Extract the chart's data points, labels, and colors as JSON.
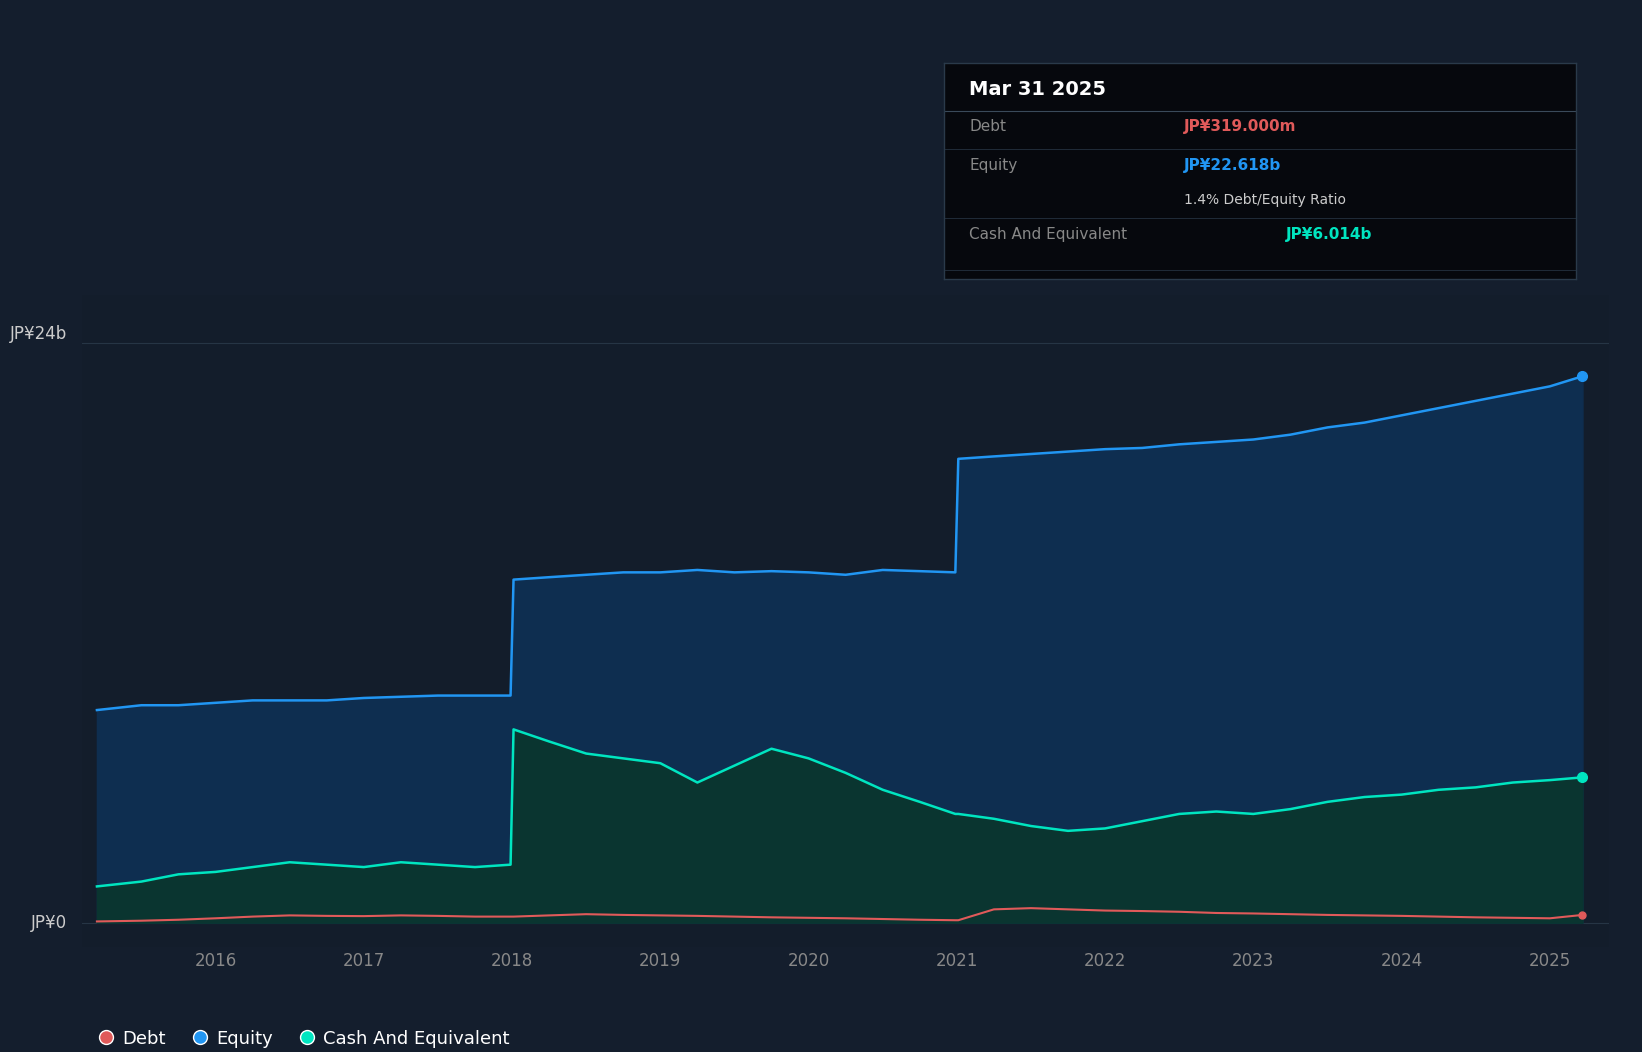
{
  "background_color": "#141e2d",
  "plot_bg_color": "#131d2b",
  "ylabel_top": "JP¥24b",
  "ylabel_bottom": "JP¥0",
  "x_ticks": [
    2016,
    2017,
    2018,
    2019,
    2020,
    2021,
    2022,
    2023,
    2024,
    2025
  ],
  "x_tick_labels": [
    "2016",
    "2017",
    "2018",
    "2019",
    "2020",
    "2021",
    "2022",
    "2023",
    "2024",
    "2025"
  ],
  "x_min": 2015.1,
  "x_max": 2025.4,
  "y_min": -1.0,
  "y_max": 26,
  "grid_color": "#263545",
  "tooltip_bg": "#06080d",
  "tooltip_border": "#2a3a4a",
  "tooltip_title": "Mar 31 2025",
  "tooltip_debt_label": "Debt",
  "tooltip_debt_value": "JP¥319.000m",
  "tooltip_equity_label": "Equity",
  "tooltip_equity_value": "JP¥22.618b",
  "tooltip_ratio": "1.4% Debt/Equity Ratio",
  "tooltip_cash_label": "Cash And Equivalent",
  "tooltip_cash_value": "JP¥6.014b",
  "debt_color": "#e05a5a",
  "equity_color": "#2196f3",
  "cash_color": "#00e5c0",
  "equity_fill_color": "#0e2e50",
  "cash_fill_color": "#0a3530",
  "dates": [
    2015.2,
    2015.5,
    2015.75,
    2016.0,
    2016.25,
    2016.5,
    2016.75,
    2017.0,
    2017.25,
    2017.5,
    2017.75,
    2017.99,
    2018.01,
    2018.25,
    2018.5,
    2018.75,
    2019.0,
    2019.25,
    2019.5,
    2019.75,
    2020.0,
    2020.25,
    2020.5,
    2020.75,
    2020.99,
    2021.01,
    2021.25,
    2021.5,
    2021.75,
    2022.0,
    2022.25,
    2022.5,
    2022.75,
    2023.0,
    2023.25,
    2023.5,
    2023.75,
    2024.0,
    2024.25,
    2024.5,
    2024.75,
    2025.0,
    2025.22
  ],
  "equity": [
    8.8,
    9.0,
    9.0,
    9.1,
    9.2,
    9.2,
    9.2,
    9.3,
    9.35,
    9.4,
    9.4,
    9.4,
    14.2,
    14.3,
    14.4,
    14.5,
    14.5,
    14.6,
    14.5,
    14.55,
    14.5,
    14.4,
    14.6,
    14.55,
    14.5,
    19.2,
    19.3,
    19.4,
    19.5,
    19.6,
    19.65,
    19.8,
    19.9,
    20.0,
    20.2,
    20.5,
    20.7,
    21.0,
    21.3,
    21.6,
    21.9,
    22.2,
    22.618
  ],
  "cash": [
    1.5,
    1.7,
    2.0,
    2.1,
    2.3,
    2.5,
    2.4,
    2.3,
    2.5,
    2.4,
    2.3,
    2.4,
    8.0,
    7.5,
    7.0,
    6.8,
    6.6,
    5.8,
    6.5,
    7.2,
    6.8,
    6.2,
    5.5,
    5.0,
    4.5,
    4.5,
    4.3,
    4.0,
    3.8,
    3.9,
    4.2,
    4.5,
    4.6,
    4.5,
    4.7,
    5.0,
    5.2,
    5.3,
    5.5,
    5.6,
    5.8,
    5.9,
    6.014
  ],
  "debt": [
    0.05,
    0.08,
    0.12,
    0.18,
    0.25,
    0.3,
    0.28,
    0.27,
    0.3,
    0.28,
    0.25,
    0.25,
    0.25,
    0.3,
    0.35,
    0.32,
    0.3,
    0.28,
    0.25,
    0.22,
    0.2,
    0.18,
    0.15,
    0.12,
    0.1,
    0.1,
    0.55,
    0.6,
    0.55,
    0.5,
    0.48,
    0.45,
    0.4,
    0.38,
    0.35,
    0.32,
    0.3,
    0.28,
    0.25,
    0.22,
    0.2,
    0.18,
    0.319
  ],
  "legend_items": [
    {
      "label": "Debt",
      "color": "#e05a5a"
    },
    {
      "label": "Equity",
      "color": "#2196f3"
    },
    {
      "label": "Cash And Equivalent",
      "color": "#00e5c0"
    }
  ]
}
